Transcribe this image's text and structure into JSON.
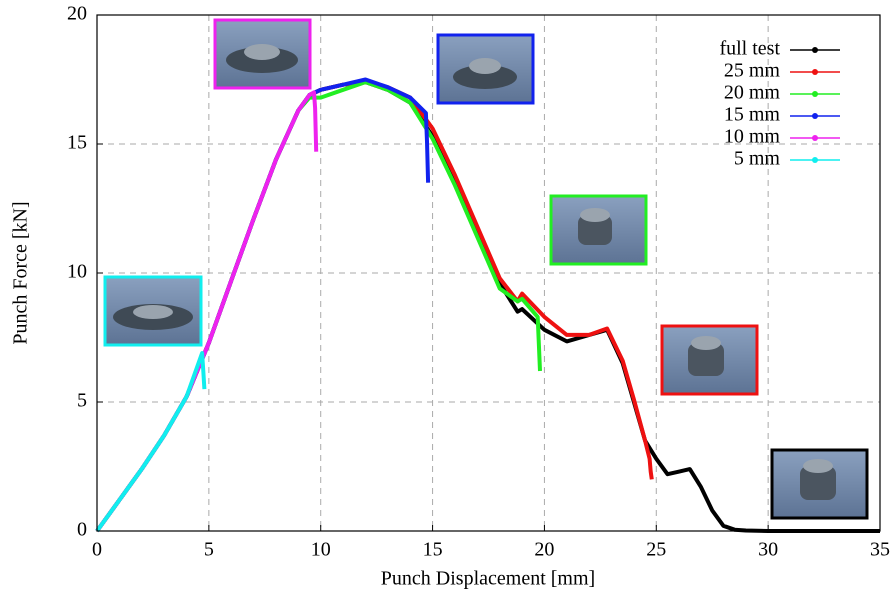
{
  "chart_data": {
    "type": "line",
    "xlabel": "Punch Displacement [mm]",
    "ylabel": "Punch Force [kN]",
    "xlim": [
      0,
      35
    ],
    "ylim": [
      0,
      20
    ],
    "xticks": [
      0,
      5,
      10,
      15,
      20,
      25,
      30,
      35
    ],
    "yticks": [
      0,
      5,
      10,
      15,
      20
    ],
    "grid": true,
    "legend": "upper right",
    "series": [
      {
        "name": "full test",
        "color": "#000000",
        "x": [
          0,
          1,
          2,
          3,
          4,
          5,
          6,
          7,
          8,
          9,
          9.5,
          10,
          11,
          12,
          13,
          14,
          15,
          16,
          17,
          18,
          18.8,
          19,
          20,
          21,
          22,
          22.8,
          23.5,
          24,
          24.5,
          25,
          25.5,
          26,
          26.5,
          27,
          27.5,
          28,
          28.5,
          29,
          30,
          31,
          32,
          33,
          34,
          35
        ],
        "values": [
          0,
          1.2,
          2.4,
          3.7,
          5.2,
          7.3,
          9.7,
          12.1,
          14.4,
          16.3,
          16.9,
          17.1,
          17.3,
          17.4,
          17.1,
          16.6,
          15.3,
          13.6,
          11.6,
          9.6,
          8.5,
          8.6,
          7.8,
          7.35,
          7.6,
          7.8,
          6.5,
          5.0,
          3.5,
          2.8,
          2.2,
          2.3,
          2.4,
          1.7,
          0.8,
          0.2,
          0.05,
          0.02,
          0,
          0,
          0,
          0,
          0,
          0
        ]
      },
      {
        "name": "25 mm",
        "color": "#ee1111",
        "x": [
          0,
          1,
          2,
          3,
          4,
          5,
          6,
          7,
          8,
          9,
          9.5,
          10,
          11,
          12,
          13,
          14,
          15,
          16,
          17,
          18,
          18.8,
          19,
          20,
          21,
          22,
          22.8,
          23.5,
          24,
          24.5,
          24.7,
          24.75,
          24.8
        ],
        "values": [
          0,
          1.2,
          2.4,
          3.7,
          5.2,
          7.3,
          9.7,
          12.1,
          14.4,
          16.3,
          16.9,
          17.1,
          17.3,
          17.4,
          17.2,
          16.8,
          15.6,
          13.8,
          11.8,
          9.8,
          8.9,
          9.2,
          8.3,
          7.6,
          7.6,
          7.85,
          6.6,
          5.1,
          3.5,
          2.8,
          2.3,
          2.0
        ]
      },
      {
        "name": "20 mm",
        "color": "#22ee22",
        "x": [
          0,
          1,
          2,
          3,
          4,
          5,
          6,
          7,
          8,
          9,
          9.5,
          10,
          11,
          12,
          13,
          14,
          15,
          16,
          17,
          18,
          18.8,
          19,
          19.7,
          19.75,
          19.8
        ],
        "values": [
          0,
          1.2,
          2.4,
          3.7,
          5.2,
          7.3,
          9.7,
          12.1,
          14.4,
          16.3,
          16.8,
          16.8,
          17.1,
          17.4,
          17.1,
          16.6,
          15.2,
          13.4,
          11.4,
          9.4,
          8.9,
          9.0,
          8.3,
          7.3,
          6.2
        ]
      },
      {
        "name": "15 mm",
        "color": "#1122ee",
        "x": [
          0,
          1,
          2,
          3,
          4,
          5,
          6,
          7,
          8,
          9,
          9.5,
          10,
          11,
          12,
          13,
          14,
          14.7,
          14.75,
          14.8
        ],
        "values": [
          0,
          1.2,
          2.4,
          3.7,
          5.2,
          7.3,
          9.7,
          12.1,
          14.4,
          16.3,
          16.9,
          17.1,
          17.3,
          17.5,
          17.2,
          16.8,
          16.2,
          15.1,
          13.5
        ]
      },
      {
        "name": "10 mm",
        "color": "#ee22ee",
        "x": [
          0,
          1,
          2,
          3,
          4,
          5,
          6,
          7,
          8,
          9,
          9.5,
          9.7,
          9.75,
          9.8
        ],
        "values": [
          0,
          1.2,
          2.4,
          3.7,
          5.2,
          7.3,
          9.7,
          12.1,
          14.4,
          16.3,
          16.9,
          17.0,
          16.4,
          14.7
        ]
      },
      {
        "name": "5 mm",
        "color": "#11eeee",
        "x": [
          0,
          1,
          2,
          3,
          4,
          4.7,
          4.75,
          4.8
        ],
        "values": [
          0,
          1.2,
          2.4,
          3.7,
          5.2,
          6.9,
          6.2,
          5.5
        ]
      }
    ]
  }
}
